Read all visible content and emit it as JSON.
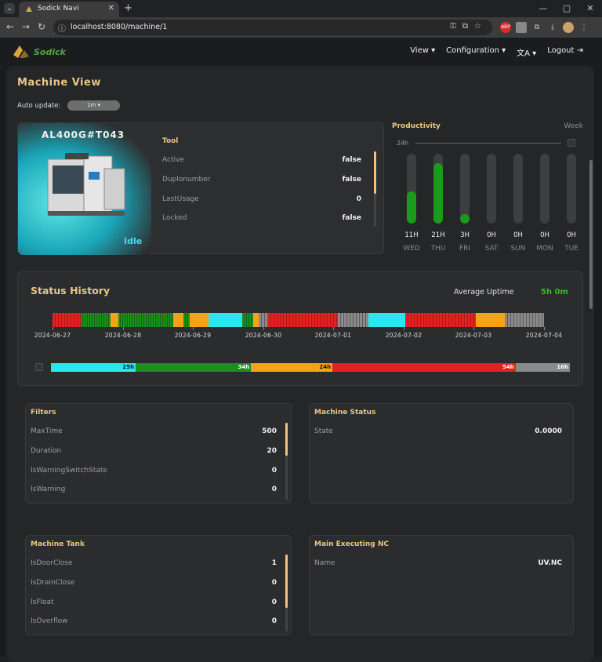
{
  "browser": {
    "tab_title": "Sodick Navi",
    "url": "localhost:8080/machine/1",
    "new_tab": "+",
    "window_buttons": [
      "—",
      "▢",
      "✕"
    ]
  },
  "navbar": {
    "brand": "Sodick",
    "view": "View ▾",
    "configuration": "Configuration ▾",
    "language_icon": "translate-icon",
    "language_caret": "▾",
    "logout": "Logout ⇥"
  },
  "page": {
    "title": "Machine View",
    "auto_update_label": "Auto update:",
    "auto_update_value": "1m ▾"
  },
  "machine": {
    "name": "AL400G#T043",
    "state": "Idle",
    "state_color": "#3fe0ee"
  },
  "tool": {
    "title": "Tool",
    "rows": [
      {
        "key": "Active",
        "value": "false"
      },
      {
        "key": "Duplonumber",
        "value": "false"
      },
      {
        "key": "LastUsage",
        "value": "0"
      },
      {
        "key": "Locked",
        "value": "false"
      }
    ]
  },
  "productivity": {
    "title": "Productivity",
    "range": "Week",
    "axis_max": "24h",
    "bar_color": "#1c9a1c",
    "days": [
      {
        "hours_label": "11H",
        "day": "WED",
        "fraction": 0.46
      },
      {
        "hours_label": "21H",
        "day": "THU",
        "fraction": 0.87
      },
      {
        "hours_label": "3H",
        "day": "FRI",
        "fraction": 0.13
      },
      {
        "hours_label": "0H",
        "day": "SAT",
        "fraction": 0
      },
      {
        "hours_label": "0H",
        "day": "SUN",
        "fraction": 0
      },
      {
        "hours_label": "0H",
        "day": "MON",
        "fraction": 0
      },
      {
        "hours_label": "0H",
        "day": "TUE",
        "fraction": 0
      }
    ]
  },
  "status_history": {
    "title": "Status History",
    "average_uptime_label": "Average Uptime",
    "average_uptime_value": "5h 0m",
    "colors": {
      "red": "#e52020",
      "green": "#1c8f1c",
      "orange": "#f5a316",
      "cyan": "#2be6f0",
      "gray": "#8a8a8a"
    },
    "timeline_segments": [
      {
        "state": "red",
        "share": 0.058
      },
      {
        "state": "green",
        "share": 0.062
      },
      {
        "state": "orange",
        "share": 0.016
      },
      {
        "state": "green",
        "share": 0.115
      },
      {
        "state": "orange",
        "share": 0.02
      },
      {
        "state": "green",
        "share": 0.013
      },
      {
        "state": "orange",
        "share": 0.04
      },
      {
        "state": "cyan",
        "share": 0.07
      },
      {
        "state": "green",
        "share": 0.022
      },
      {
        "state": "orange",
        "share": 0.012
      },
      {
        "state": "gray",
        "share": 0.02
      },
      {
        "state": "red",
        "share": 0.144
      },
      {
        "state": "gray",
        "share": 0.063
      },
      {
        "state": "cyan",
        "share": 0.077
      },
      {
        "state": "red",
        "share": 0.147
      },
      {
        "state": "orange",
        "share": 0.06
      },
      {
        "state": "gray",
        "share": 0.081
      }
    ],
    "dates": [
      "2024-06-27",
      "2024-06-28",
      "2024-06-29",
      "2024-06-30",
      "2024-07-01",
      "2024-07-02",
      "2024-07-03",
      "2024-07-04"
    ],
    "summary": [
      {
        "state": "cyan",
        "label": "25h",
        "hours": 25
      },
      {
        "state": "green",
        "label": "34h",
        "hours": 34
      },
      {
        "state": "orange",
        "label": "24h",
        "hours": 24
      },
      {
        "state": "red",
        "label": "54h",
        "hours": 54
      },
      {
        "state": "gray",
        "label": "16h",
        "hours": 16
      }
    ]
  },
  "filters": {
    "title": "Filters",
    "rows": [
      {
        "key": "MaxTime",
        "value": "500"
      },
      {
        "key": "Duration",
        "value": "20"
      },
      {
        "key": "IsWarningSwitchState",
        "value": "0"
      },
      {
        "key": "IsWarning",
        "value": "0"
      }
    ]
  },
  "machine_status": {
    "title": "Machine Status",
    "rows": [
      {
        "key": "State",
        "value": "0.0000"
      }
    ]
  },
  "machine_tank": {
    "title": "Machine Tank",
    "rows": [
      {
        "key": "IsDoorClose",
        "value": "1"
      },
      {
        "key": "IsDrainClose",
        "value": "0"
      },
      {
        "key": "IsFloat",
        "value": "0"
      },
      {
        "key": "IsOverflow",
        "value": "0"
      }
    ]
  },
  "main_nc": {
    "title": "Main Executing NC",
    "rows": [
      {
        "key": "Name",
        "value": "UV.NC"
      }
    ]
  }
}
